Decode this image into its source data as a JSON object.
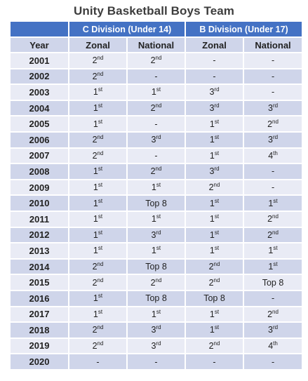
{
  "title": "Unity Basketball Boys Team",
  "divisions": [
    {
      "label": "C Division (Under 14)"
    },
    {
      "label": "B Division (Under 17)"
    }
  ],
  "columns": [
    "Year",
    "Zonal",
    "National",
    "Zonal",
    "National"
  ],
  "rows": [
    {
      "year": "2001",
      "c_zonal": "2nd",
      "c_national": "2nd",
      "b_zonal": "-",
      "b_national": "-"
    },
    {
      "year": "2002",
      "c_zonal": "2nd",
      "c_national": "-",
      "b_zonal": "-",
      "b_national": "-"
    },
    {
      "year": "2003",
      "c_zonal": "1st",
      "c_national": "1st",
      "b_zonal": "3rd",
      "b_national": "-"
    },
    {
      "year": "2004",
      "c_zonal": "1st",
      "c_national": "2nd",
      "b_zonal": "3rd",
      "b_national": "3rd"
    },
    {
      "year": "2005",
      "c_zonal": "1st",
      "c_national": "-",
      "b_zonal": "1st",
      "b_national": "2nd"
    },
    {
      "year": "2006",
      "c_zonal": "2nd",
      "c_national": "3rd",
      "b_zonal": "1st",
      "b_national": "3rd"
    },
    {
      "year": "2007",
      "c_zonal": "2nd",
      "c_national": "-",
      "b_zonal": "1st",
      "b_national": "4th"
    },
    {
      "year": "2008",
      "c_zonal": "1st",
      "c_national": "2nd",
      "b_zonal": "3rd",
      "b_national": "-"
    },
    {
      "year": "2009",
      "c_zonal": "1st",
      "c_national": "1st",
      "b_zonal": "2nd",
      "b_national": "-"
    },
    {
      "year": "2010",
      "c_zonal": "1st",
      "c_national": "Top 8",
      "b_zonal": "1st",
      "b_national": "1st"
    },
    {
      "year": "2011",
      "c_zonal": "1st",
      "c_national": "1st",
      "b_zonal": "1st",
      "b_national": "2nd"
    },
    {
      "year": "2012",
      "c_zonal": "1st",
      "c_national": "3rd",
      "b_zonal": "1st",
      "b_national": "2nd"
    },
    {
      "year": "2013",
      "c_zonal": "1st",
      "c_national": "1st",
      "b_zonal": "1st",
      "b_national": "1st"
    },
    {
      "year": "2014",
      "c_zonal": "2nd",
      "c_national": "Top 8",
      "b_zonal": "2nd",
      "b_national": "1st"
    },
    {
      "year": "2015",
      "c_zonal": "2nd",
      "c_national": "2nd",
      "b_zonal": "2nd",
      "b_national": "Top 8"
    },
    {
      "year": "2016",
      "c_zonal": "1st",
      "c_national": "Top 8",
      "b_zonal": "Top 8",
      "b_national": "-"
    },
    {
      "year": "2017",
      "c_zonal": "1st",
      "c_national": "1st",
      "b_zonal": "1st",
      "b_national": "2nd"
    },
    {
      "year": "2018",
      "c_zonal": "2nd",
      "c_national": "3rd",
      "b_zonal": "1st",
      "b_national": "3rd"
    },
    {
      "year": "2019",
      "c_zonal": "2nd",
      "c_national": "3rd",
      "b_zonal": "2nd",
      "b_national": "4th"
    },
    {
      "year": "2020",
      "c_zonal": "-",
      "c_national": "-",
      "b_zonal": "-",
      "b_national": "-"
    }
  ],
  "colors": {
    "header_blue": "#4472c4",
    "row_dark": "#cfd5ea",
    "row_light": "#e9ebf5"
  }
}
